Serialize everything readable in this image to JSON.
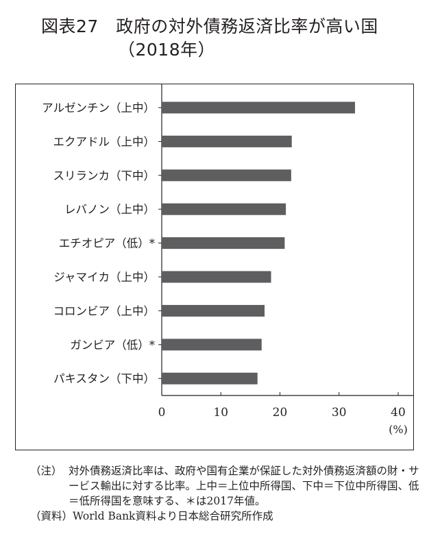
{
  "title": {
    "line1": "図表27　政府の対外債務返済比率が高い国",
    "line2": "（2018年）"
  },
  "chart_data": {
    "type": "bar",
    "orientation": "horizontal",
    "categories": [
      "アルゼンチン（上中）",
      "エクアドル（上中）",
      "スリランカ（下中）",
      "レバノン（上中）",
      "エチオピア（低）*",
      "ジャマイカ（上中）",
      "コロンビア（上中）",
      "ガンビア（低）*",
      "パキスタン（下中）"
    ],
    "values": [
      32.7,
      22.0,
      21.9,
      21.0,
      20.8,
      18.5,
      17.4,
      16.9,
      16.2
    ],
    "xlim": [
      0,
      42
    ],
    "xticks": [
      "0",
      "10",
      "20",
      "30",
      "40"
    ],
    "xtick_values": [
      0,
      10,
      20,
      30,
      40
    ],
    "unit": "(%)",
    "bar_color": "#5e5e60",
    "grid": false
  },
  "notes": {
    "note_label": "（注）",
    "note_text": "対外債務返済比率は、政府や国有企業が保証した対外債務返済額の財・サービス輸出に対する比率。上中＝上位中所得国、下中＝下位中所得国、低＝低所得国を意味する、＊は2017年値。",
    "source_label": "（資料）",
    "source_text": "World Bank資料より日本総合研究所作成"
  }
}
